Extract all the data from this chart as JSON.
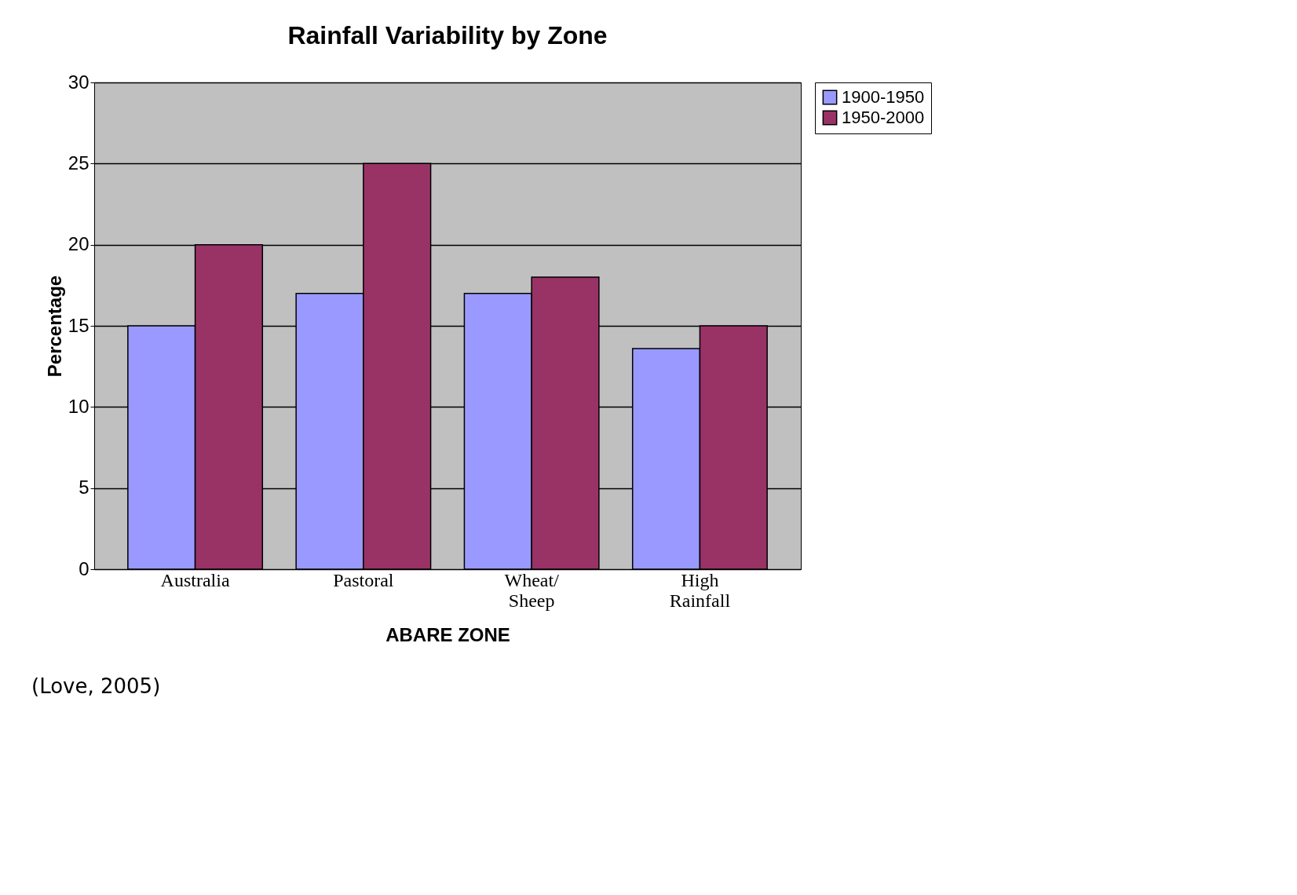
{
  "chart_data": {
    "type": "bar",
    "title": "Rainfall Variability by Zone",
    "xlabel": "ABARE ZONE",
    "ylabel": "Percentage",
    "categories": [
      "Australia",
      "Pastoral",
      "Wheat/ Sheep",
      "High Rainfall"
    ],
    "series": [
      {
        "name": "1900-1950",
        "color": "#9999ff",
        "values": [
          15,
          17,
          17,
          13.6
        ]
      },
      {
        "name": "1950-2000",
        "color": "#993366",
        "values": [
          20,
          25,
          18,
          15
        ]
      }
    ],
    "ylim": [
      0,
      30
    ],
    "yticks": [
      0,
      5,
      10,
      15,
      20,
      25,
      30
    ],
    "grid": "y",
    "legend": "right",
    "annotations": [
      "(Love, 2005)"
    ]
  }
}
